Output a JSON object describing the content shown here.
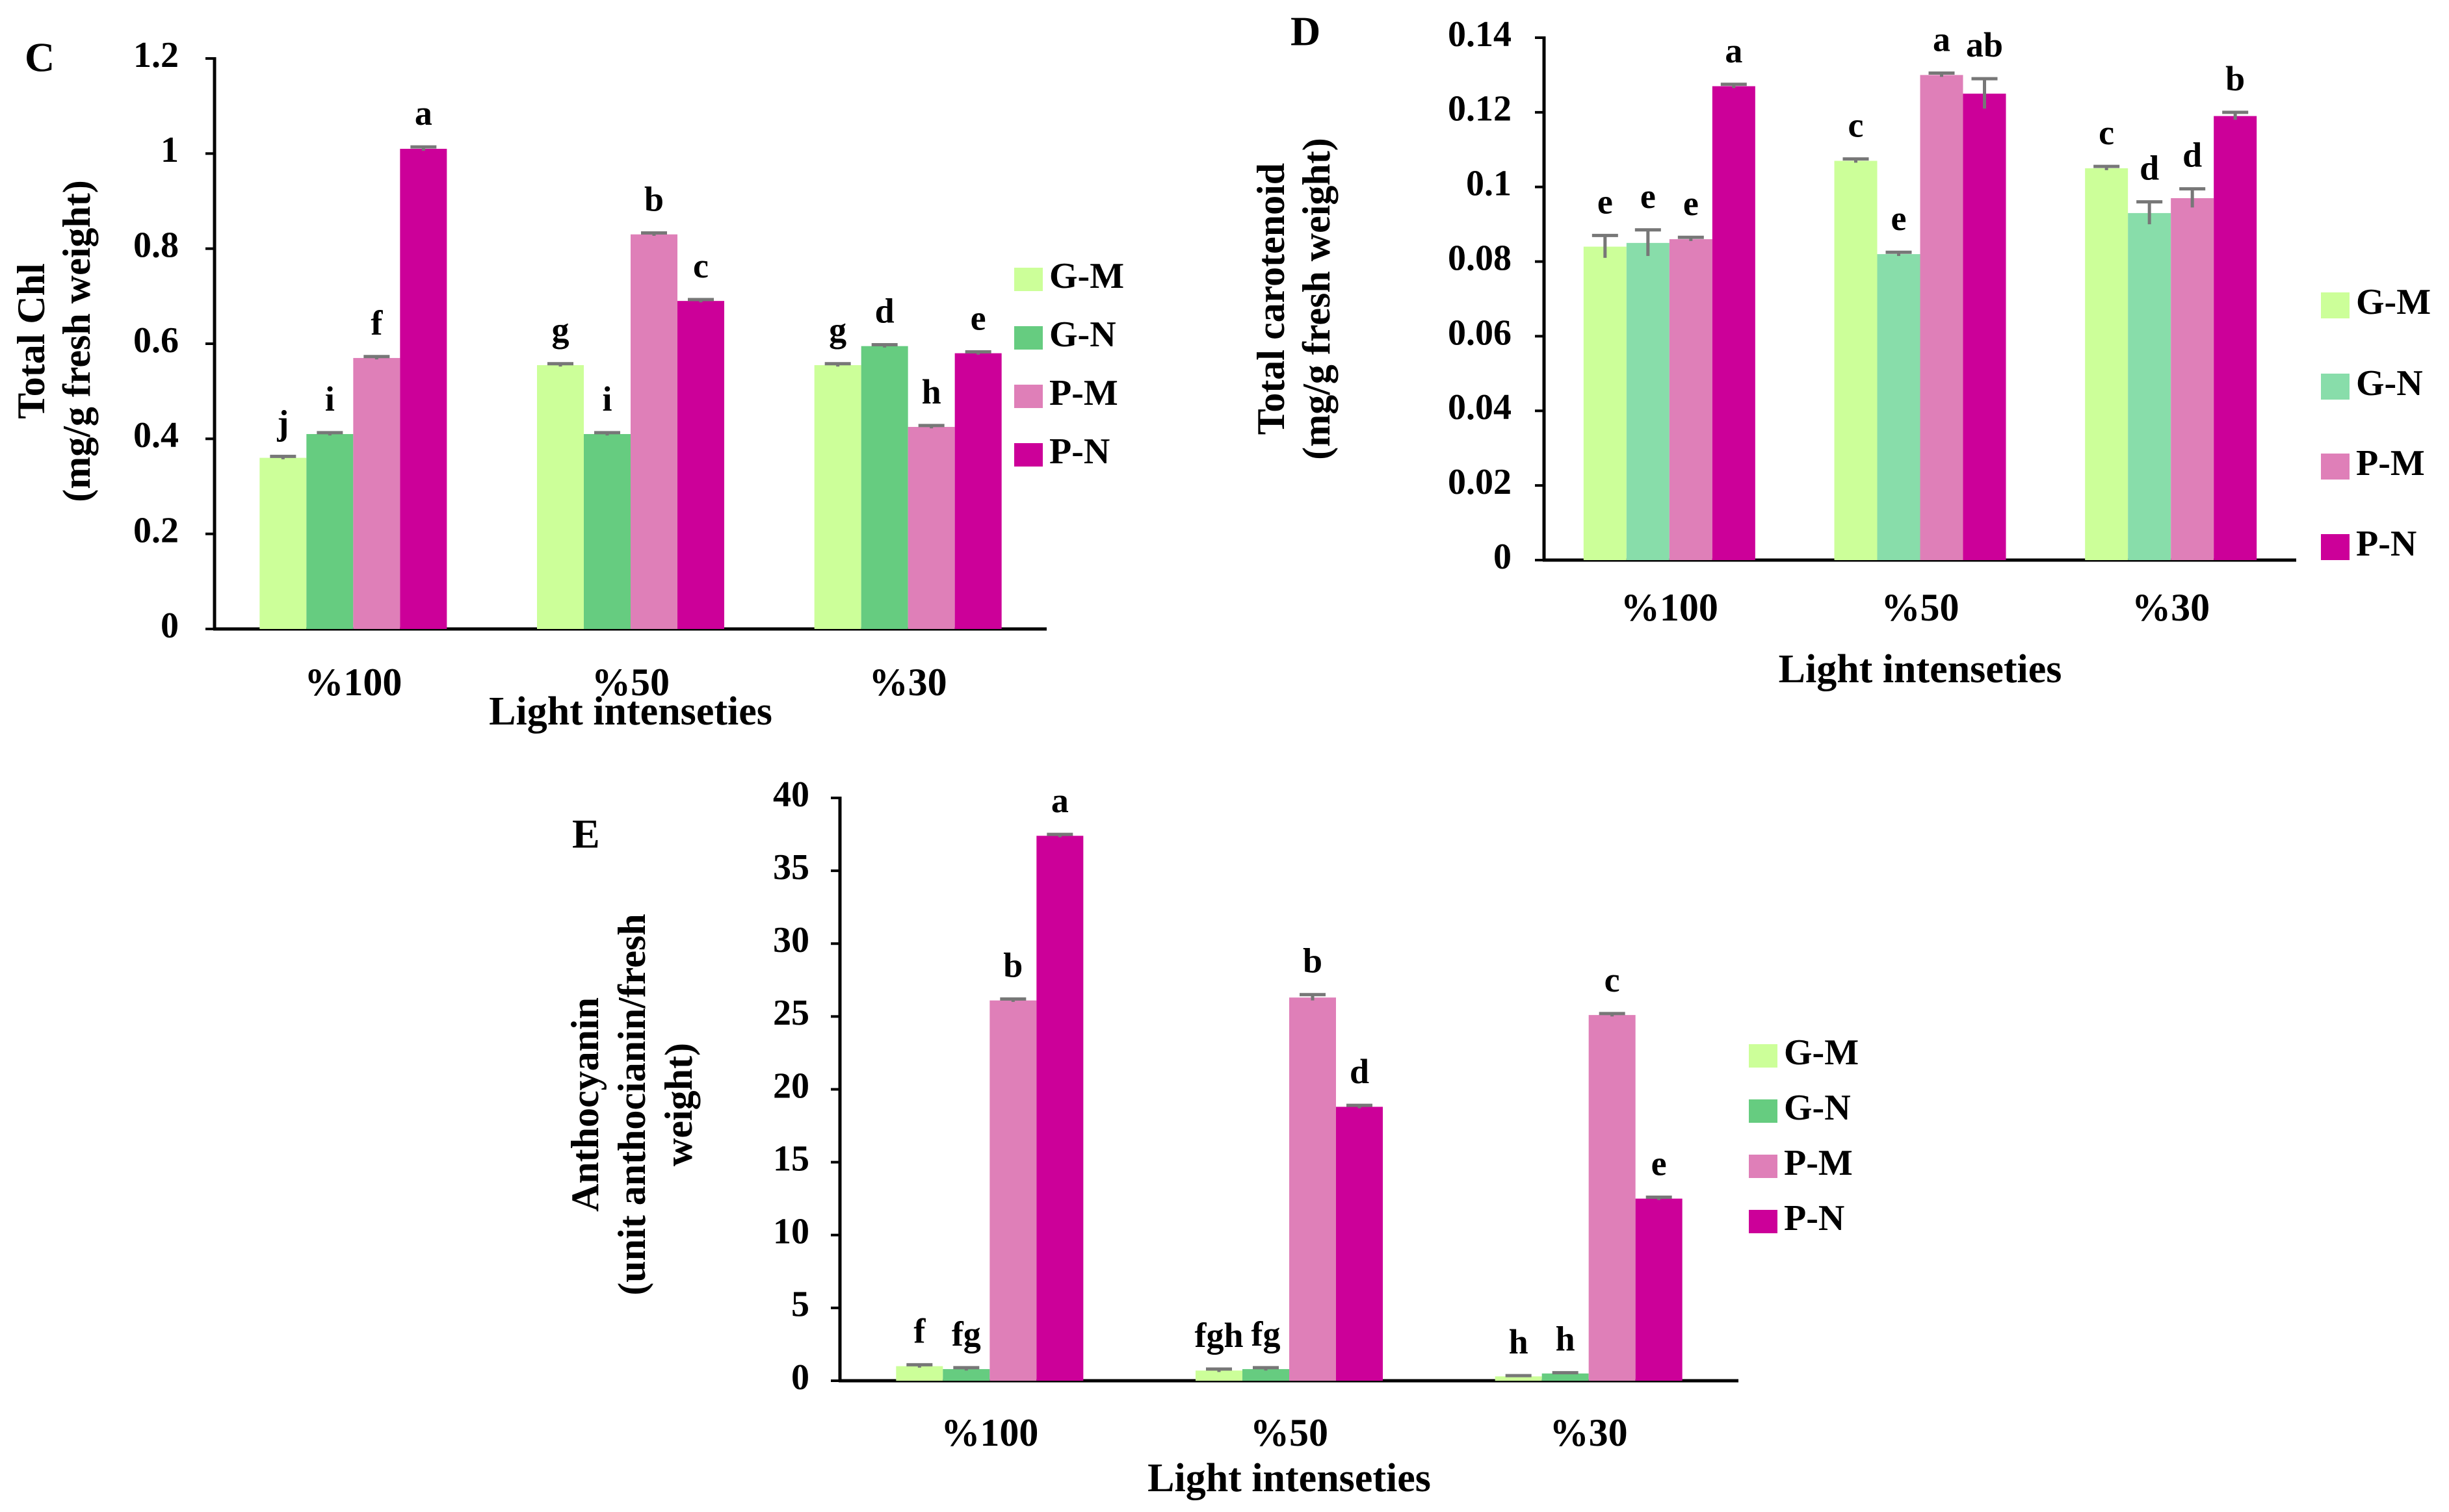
{
  "colors": {
    "G-M": "#ccff99",
    "G-N": "#66cc80",
    "G-N-D": "#88ddaa",
    "P-M": "#df7fb8",
    "P-N": "#cc0099",
    "axis": "#000000",
    "error": "#777777"
  },
  "chart_data": [
    {
      "panel": "C",
      "type": "bar",
      "title": "",
      "xlabel": "Light intenseties",
      "ylabel_lines": [
        "Total Chl",
        "(mg/g fresh weight)"
      ],
      "ylim": [
        0,
        1.2
      ],
      "yticks": [
        0,
        0.2,
        0.4,
        0.6,
        0.8,
        1,
        1.2
      ],
      "ytick_labels": [
        "0",
        "0.2",
        "0.4",
        "0.6",
        "0.8",
        "1",
        "1.2"
      ],
      "categories": [
        "%100",
        "%50",
        "%30"
      ],
      "legend_position": "right",
      "series": [
        {
          "name": "G-M",
          "values": [
            0.36,
            0.555,
            0.555
          ],
          "errors": [
            0.003,
            0.003,
            0.003
          ],
          "letters": [
            "j",
            "g",
            "g"
          ]
        },
        {
          "name": "G-N",
          "values": [
            0.41,
            0.41,
            0.595
          ],
          "errors": [
            0.003,
            0.003,
            0.003
          ],
          "letters": [
            "i",
            "i",
            "d"
          ]
        },
        {
          "name": "P-M",
          "values": [
            0.57,
            0.83,
            0.425
          ],
          "errors": [
            0.003,
            0.003,
            0.003
          ],
          "letters": [
            "f",
            "b",
            "h"
          ]
        },
        {
          "name": "P-N",
          "values": [
            1.01,
            0.69,
            0.58
          ],
          "errors": [
            0.004,
            0.003,
            0.003
          ],
          "letters": [
            "a",
            "c",
            "e"
          ]
        }
      ]
    },
    {
      "panel": "D",
      "type": "bar",
      "title": "",
      "xlabel": "Light intenseties",
      "ylabel_lines": [
        "Total carotenoid",
        "(mg/g fresh weight)"
      ],
      "ylim": [
        0,
        0.14
      ],
      "yticks": [
        0,
        0.02,
        0.04,
        0.06,
        0.08,
        0.1,
        0.12,
        0.14
      ],
      "ytick_labels": [
        "0",
        "0.02",
        "0.04",
        "0.06",
        "0.08",
        "0.1",
        "0.12",
        "0.14"
      ],
      "categories": [
        "%100",
        "%50",
        "%30"
      ],
      "legend_position": "right",
      "series": [
        {
          "name": "G-M",
          "values": [
            0.084,
            0.107,
            0.105
          ],
          "errors": [
            0.003,
            0.0005,
            0.0005
          ],
          "letters": [
            "e",
            "c",
            "c"
          ]
        },
        {
          "name": "G-N",
          "values": [
            0.085,
            0.082,
            0.093
          ],
          "errors": [
            0.0035,
            0.0005,
            0.003
          ],
          "letters": [
            "e",
            "e",
            "d"
          ]
        },
        {
          "name": "P-M",
          "values": [
            0.086,
            0.13,
            0.097
          ],
          "errors": [
            0.0005,
            0.0005,
            0.0025
          ],
          "letters": [
            "e",
            "a",
            "d"
          ]
        },
        {
          "name": "P-N",
          "values": [
            0.127,
            0.125,
            0.119
          ],
          "errors": [
            0.0005,
            0.004,
            0.001
          ],
          "letters": [
            "a",
            "ab",
            "b"
          ]
        }
      ]
    },
    {
      "panel": "E",
      "type": "bar",
      "title": "",
      "xlabel": "Light intenseties",
      "ylabel_lines": [
        "Anthocyanin",
        "(unit anthocianin/fresh",
        "weight)"
      ],
      "ylim": [
        0,
        40
      ],
      "yticks": [
        0,
        5,
        10,
        15,
        20,
        25,
        30,
        35,
        40
      ],
      "ytick_labels": [
        "0",
        "5",
        "10",
        "15",
        "20",
        "25",
        "30",
        "35",
        "40"
      ],
      "categories": [
        "%100",
        "%50",
        "%30"
      ],
      "legend_position": "right",
      "series": [
        {
          "name": "G-M",
          "values": [
            1.0,
            0.7,
            0.3
          ],
          "errors": [
            0.1,
            0.1,
            0.05
          ],
          "letters": [
            "f",
            "fgh",
            "h"
          ]
        },
        {
          "name": "G-N",
          "values": [
            0.8,
            0.8,
            0.5
          ],
          "errors": [
            0.1,
            0.1,
            0.05
          ],
          "letters": [
            "fg",
            "fg",
            "h"
          ]
        },
        {
          "name": "P-M",
          "values": [
            26.1,
            26.3,
            25.1
          ],
          "errors": [
            0.1,
            0.2,
            0.1
          ],
          "letters": [
            "b",
            "b",
            "c"
          ]
        },
        {
          "name": "P-N",
          "values": [
            37.4,
            18.8,
            12.5
          ],
          "errors": [
            0.1,
            0.1,
            0.1
          ],
          "letters": [
            "a",
            "d",
            "e"
          ]
        }
      ]
    }
  ]
}
